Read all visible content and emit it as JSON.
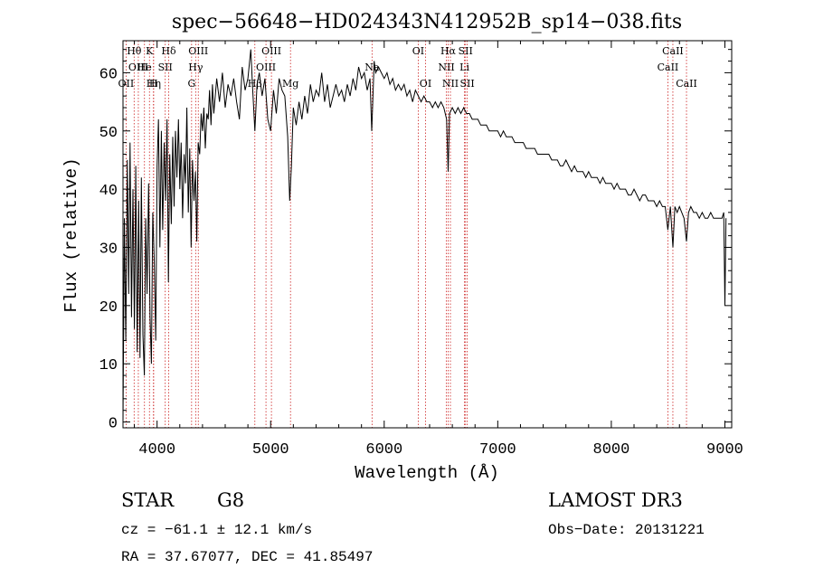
{
  "chart_data": {
    "type": "line",
    "title": "spec−56648−HD024343N412952B_sp14−038.fits",
    "xlabel": "Wavelength (Å)",
    "ylabel": "Flux (relative)",
    "xlim": [
      3700,
      9060
    ],
    "ylim": [
      -1,
      65.5
    ],
    "xticks": [
      4000,
      5000,
      6000,
      7000,
      8000,
      9000
    ],
    "yticks": [
      0,
      10,
      20,
      30,
      40,
      50,
      60
    ],
    "grid": false,
    "series": [
      {
        "name": "flux",
        "points": [
          [
            3700,
            0
          ],
          [
            3712,
            35
          ],
          [
            3725,
            14
          ],
          [
            3738,
            45
          ],
          [
            3750,
            22
          ],
          [
            3762,
            48
          ],
          [
            3775,
            18
          ],
          [
            3788,
            40
          ],
          [
            3800,
            16
          ],
          [
            3812,
            44
          ],
          [
            3825,
            12
          ],
          [
            3838,
            38
          ],
          [
            3850,
            11
          ],
          [
            3862,
            42
          ],
          [
            3875,
            15
          ],
          [
            3888,
            8
          ],
          [
            3900,
            35
          ],
          [
            3912,
            22
          ],
          [
            3925,
            41
          ],
          [
            3938,
            18
          ],
          [
            3950,
            10
          ],
          [
            3962,
            36
          ],
          [
            3975,
            28
          ],
          [
            3988,
            14
          ],
          [
            4000,
            44
          ],
          [
            4012,
            52
          ],
          [
            4025,
            30
          ],
          [
            4038,
            50
          ],
          [
            4050,
            33
          ],
          [
            4062,
            48
          ],
          [
            4075,
            38
          ],
          [
            4088,
            52
          ],
          [
            4100,
            24
          ],
          [
            4112,
            46
          ],
          [
            4125,
            34
          ],
          [
            4138,
            49
          ],
          [
            4150,
            37
          ],
          [
            4162,
            50
          ],
          [
            4175,
            42
          ],
          [
            4188,
            52
          ],
          [
            4200,
            40
          ],
          [
            4212,
            48
          ],
          [
            4225,
            35
          ],
          [
            4238,
            46
          ],
          [
            4250,
            41
          ],
          [
            4262,
            54
          ],
          [
            4275,
            36
          ],
          [
            4288,
            47
          ],
          [
            4300,
            30
          ],
          [
            4312,
            45
          ],
          [
            4325,
            38
          ],
          [
            4338,
            43
          ],
          [
            4350,
            31
          ],
          [
            4362,
            48
          ],
          [
            4375,
            46
          ],
          [
            4388,
            53
          ],
          [
            4400,
            50
          ],
          [
            4412,
            54
          ],
          [
            4425,
            47
          ],
          [
            4438,
            53
          ],
          [
            4450,
            52
          ],
          [
            4462,
            57
          ],
          [
            4475,
            51
          ],
          [
            4488,
            58
          ],
          [
            4500,
            53
          ],
          [
            4525,
            59
          ],
          [
            4550,
            55
          ],
          [
            4575,
            60
          ],
          [
            4600,
            54
          ],
          [
            4625,
            58
          ],
          [
            4650,
            56
          ],
          [
            4675,
            59
          ],
          [
            4700,
            55
          ],
          [
            4725,
            52
          ],
          [
            4750,
            61
          ],
          [
            4775,
            57
          ],
          [
            4800,
            59
          ],
          [
            4825,
            64
          ],
          [
            4840,
            58
          ],
          [
            4861,
            50
          ],
          [
            4880,
            58
          ],
          [
            4900,
            60
          ],
          [
            4925,
            56
          ],
          [
            4950,
            59
          ],
          [
            4975,
            52
          ],
          [
            5000,
            50
          ],
          [
            5025,
            57
          ],
          [
            5050,
            53
          ],
          [
            5075,
            59
          ],
          [
            5100,
            57
          ],
          [
            5125,
            56
          ],
          [
            5150,
            49
          ],
          [
            5168,
            38
          ],
          [
            5183,
            44
          ],
          [
            5200,
            54
          ],
          [
            5225,
            51
          ],
          [
            5250,
            55
          ],
          [
            5275,
            52
          ],
          [
            5300,
            56
          ],
          [
            5325,
            53
          ],
          [
            5350,
            58
          ],
          [
            5375,
            55
          ],
          [
            5400,
            57
          ],
          [
            5425,
            56
          ],
          [
            5450,
            60
          ],
          [
            5475,
            55
          ],
          [
            5500,
            58
          ],
          [
            5525,
            54
          ],
          [
            5550,
            56
          ],
          [
            5575,
            58
          ],
          [
            5600,
            56
          ],
          [
            5625,
            57
          ],
          [
            5650,
            55
          ],
          [
            5675,
            58
          ],
          [
            5700,
            56
          ],
          [
            5725,
            59
          ],
          [
            5750,
            57
          ],
          [
            5775,
            61
          ],
          [
            5800,
            59
          ],
          [
            5825,
            60
          ],
          [
            5850,
            57
          ],
          [
            5875,
            59
          ],
          [
            5890,
            50
          ],
          [
            5896,
            53
          ],
          [
            5912,
            62
          ],
          [
            5925,
            60
          ],
          [
            5950,
            61
          ],
          [
            5975,
            60
          ],
          [
            6000,
            59
          ],
          [
            6025,
            60
          ],
          [
            6050,
            58
          ],
          [
            6075,
            59
          ],
          [
            6100,
            57
          ],
          [
            6125,
            58
          ],
          [
            6150,
            57
          ],
          [
            6175,
            58
          ],
          [
            6200,
            56
          ],
          [
            6225,
            57
          ],
          [
            6250,
            55
          ],
          [
            6275,
            57
          ],
          [
            6300,
            56
          ],
          [
            6325,
            55
          ],
          [
            6350,
            56
          ],
          [
            6375,
            55
          ],
          [
            6400,
            55
          ],
          [
            6425,
            54
          ],
          [
            6450,
            55
          ],
          [
            6475,
            54
          ],
          [
            6500,
            55
          ],
          [
            6525,
            54
          ],
          [
            6550,
            52
          ],
          [
            6563,
            43
          ],
          [
            6575,
            53
          ],
          [
            6600,
            54
          ],
          [
            6625,
            53
          ],
          [
            6650,
            54
          ],
          [
            6675,
            53
          ],
          [
            6700,
            54
          ],
          [
            6725,
            53
          ],
          [
            6750,
            53
          ],
          [
            6775,
            52
          ],
          [
            6800,
            52
          ],
          [
            6825,
            52
          ],
          [
            6850,
            51
          ],
          [
            6875,
            51
          ],
          [
            6900,
            51
          ],
          [
            6925,
            50
          ],
          [
            6950,
            50
          ],
          [
            6975,
            50
          ],
          [
            7000,
            50
          ],
          [
            7025,
            49
          ],
          [
            7050,
            50
          ],
          [
            7075,
            49
          ],
          [
            7100,
            49
          ],
          [
            7125,
            49
          ],
          [
            7150,
            48
          ],
          [
            7175,
            48
          ],
          [
            7200,
            48
          ],
          [
            7225,
            48
          ],
          [
            7250,
            47
          ],
          [
            7275,
            47
          ],
          [
            7300,
            47
          ],
          [
            7325,
            47
          ],
          [
            7350,
            46
          ],
          [
            7375,
            46
          ],
          [
            7400,
            46
          ],
          [
            7425,
            46
          ],
          [
            7450,
            46
          ],
          [
            7475,
            45
          ],
          [
            7500,
            45
          ],
          [
            7525,
            45
          ],
          [
            7550,
            44
          ],
          [
            7575,
            44
          ],
          [
            7600,
            45
          ],
          [
            7625,
            44
          ],
          [
            7650,
            43
          ],
          [
            7675,
            44
          ],
          [
            7700,
            43
          ],
          [
            7725,
            43
          ],
          [
            7750,
            43
          ],
          [
            7775,
            42
          ],
          [
            7800,
            43
          ],
          [
            7825,
            42
          ],
          [
            7850,
            42
          ],
          [
            7875,
            42
          ],
          [
            7900,
            41
          ],
          [
            7925,
            42
          ],
          [
            7950,
            41
          ],
          [
            7975,
            41
          ],
          [
            8000,
            41
          ],
          [
            8025,
            40
          ],
          [
            8050,
            41
          ],
          [
            8075,
            40
          ],
          [
            8100,
            40
          ],
          [
            8125,
            40
          ],
          [
            8150,
            39
          ],
          [
            8175,
            39
          ],
          [
            8200,
            40
          ],
          [
            8225,
            39
          ],
          [
            8250,
            38
          ],
          [
            8275,
            39
          ],
          [
            8300,
            39
          ],
          [
            8325,
            38
          ],
          [
            8350,
            38
          ],
          [
            8375,
            38
          ],
          [
            8400,
            37
          ],
          [
            8425,
            38
          ],
          [
            8450,
            37
          ],
          [
            8475,
            37
          ],
          [
            8498,
            33
          ],
          [
            8520,
            37
          ],
          [
            8542,
            30
          ],
          [
            8560,
            37
          ],
          [
            8580,
            36
          ],
          [
            8600,
            37
          ],
          [
            8620,
            36
          ],
          [
            8640,
            35
          ],
          [
            8662,
            31
          ],
          [
            8680,
            36
          ],
          [
            8700,
            37
          ],
          [
            8725,
            36
          ],
          [
            8750,
            36
          ],
          [
            8775,
            35
          ],
          [
            8800,
            36
          ],
          [
            8825,
            35
          ],
          [
            8850,
            35
          ],
          [
            8875,
            36
          ],
          [
            8900,
            35
          ],
          [
            8925,
            35
          ],
          [
            8950,
            35
          ],
          [
            8975,
            35
          ],
          [
            8990,
            36
          ],
          [
            9000,
            20
          ],
          [
            9010,
            35
          ]
        ]
      }
    ],
    "lines": [
      {
        "wave": 3727,
        "label": "OII",
        "row": 2
      },
      {
        "wave": 3798,
        "label": "Hθ",
        "row": 0
      },
      {
        "wave": 3835,
        "label": "OIII",
        "row": 1
      },
      {
        "wave": 3889,
        "label": "He",
        "row": 1
      },
      {
        "wave": 3933,
        "label": "K",
        "row": 0
      },
      {
        "wave": 3968,
        "label": "H",
        "row": 2
      },
      {
        "wave": 3970,
        "label": "Hη",
        "row": 2
      },
      {
        "wave": 4072,
        "label": "SII",
        "row": 1
      },
      {
        "wave": 4102,
        "label": "Hδ",
        "row": 0
      },
      {
        "wave": 4304,
        "label": "G",
        "row": 2
      },
      {
        "wave": 4340,
        "label": "Hγ",
        "row": 1
      },
      {
        "wave": 4363,
        "label": "OIII",
        "row": 0
      },
      {
        "wave": 4861,
        "label": "Hβ",
        "row": 2
      },
      {
        "wave": 4959,
        "label": "OIII",
        "row": 1
      },
      {
        "wave": 5007,
        "label": "OIII",
        "row": 0
      },
      {
        "wave": 5175,
        "label": "Mg",
        "row": 2
      },
      {
        "wave": 5893,
        "label": "Na",
        "row": 1
      },
      {
        "wave": 6300,
        "label": "OI",
        "row": 0
      },
      {
        "wave": 6364,
        "label": "OI",
        "row": 2
      },
      {
        "wave": 6548,
        "label": "NII",
        "row": 1
      },
      {
        "wave": 6563,
        "label": "Hα",
        "row": 0
      },
      {
        "wave": 6583,
        "label": "NII",
        "row": 2
      },
      {
        "wave": 6707,
        "label": "Li",
        "row": 1
      },
      {
        "wave": 6716,
        "label": "SII",
        "row": 0
      },
      {
        "wave": 6731,
        "label": "SII",
        "row": 2
      },
      {
        "wave": 8498,
        "label": "CaII",
        "row": 1
      },
      {
        "wave": 8542,
        "label": "CaII",
        "row": 0
      },
      {
        "wave": 8662,
        "label": "CaII",
        "row": 2
      }
    ],
    "line_color": "#000000",
    "marker_color": "#cc2222"
  },
  "info": {
    "object_type": "STAR",
    "subclass": "G8",
    "survey": "LAMOST DR3",
    "cz_text": "cz = −61.1 ± 12.1 km/s",
    "obs_date_text": "Obs−Date: 20131221",
    "coords_text": "RA =  37.67077, DEC =  41.85497"
  }
}
